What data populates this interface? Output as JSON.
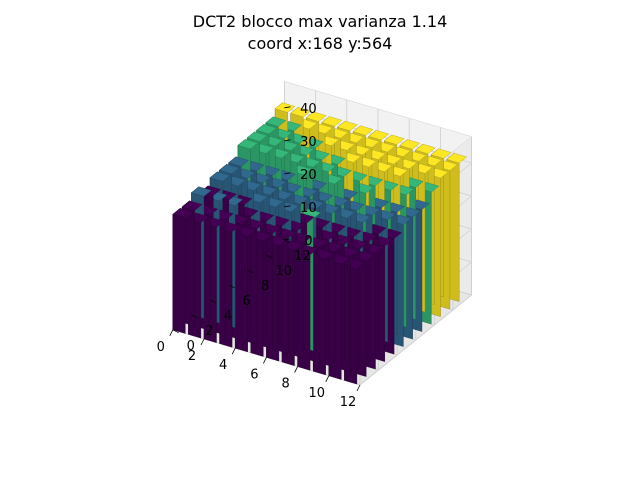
{
  "title": "DCT2 blocco max varianza 1.14",
  "subtitle": "coord x:168 y:564",
  "chart_data": {
    "type": "bar3d",
    "title": "DCT2 blocco max varianza 1.14",
    "subtitle": "coord x:168 y:564",
    "grid_size": 12,
    "xlim": [
      0,
      12
    ],
    "ylim": [
      0,
      12
    ],
    "zlim": [
      0,
      45
    ],
    "x_ticks": [
      0,
      2,
      4,
      6,
      8,
      10,
      12
    ],
    "y_ticks": [
      0,
      2,
      4,
      6,
      8,
      10,
      12
    ],
    "z_ticks": [
      0,
      10,
      20,
      30,
      40
    ],
    "bar_colors": [
      "#440154",
      "#31688e",
      "#35b779",
      "#fde725"
    ],
    "color_levels": [
      35,
      37,
      40,
      42
    ],
    "grid": true,
    "heights": [
      [
        35,
        35,
        37,
        35,
        37,
        37,
        37,
        40,
        40,
        40,
        40,
        42
      ],
      [
        35,
        35,
        37,
        35,
        37,
        37,
        37,
        40,
        40,
        40,
        40,
        42
      ],
      [
        35,
        35,
        37,
        35,
        37,
        37,
        37,
        40,
        40,
        40,
        42,
        42
      ],
      [
        35,
        35,
        35,
        37,
        37,
        37,
        37,
        40,
        40,
        40,
        42,
        42
      ],
      [
        35,
        35,
        35,
        37,
        37,
        37,
        40,
        40,
        40,
        42,
        42,
        42
      ],
      [
        35,
        35,
        35,
        37,
        37,
        37,
        37,
        40,
        40,
        42,
        42,
        42
      ],
      [
        35,
        35,
        35,
        35,
        37,
        37,
        40,
        40,
        42,
        42,
        42,
        42
      ],
      [
        35,
        35,
        40,
        35,
        37,
        37,
        37,
        40,
        42,
        42,
        42,
        42
      ],
      [
        35,
        35,
        35,
        35,
        37,
        37,
        40,
        40,
        42,
        42,
        42,
        42
      ],
      [
        35,
        35,
        35,
        35,
        37,
        37,
        37,
        40,
        42,
        42,
        42,
        42
      ],
      [
        35,
        35,
        35,
        35,
        35,
        37,
        37,
        40,
        40,
        42,
        42,
        42
      ],
      [
        35,
        35,
        35,
        35,
        35,
        37,
        37,
        37,
        40,
        42,
        42,
        42
      ]
    ]
  }
}
